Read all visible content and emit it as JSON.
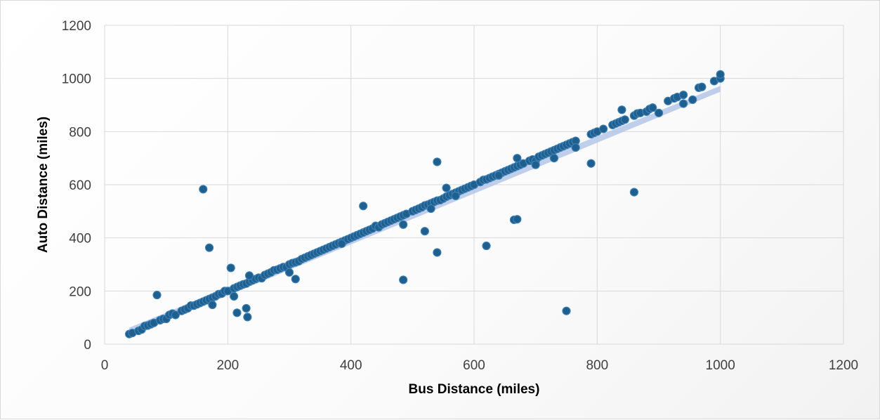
{
  "chart_data": {
    "type": "scatter",
    "title": "",
    "xlabel": "Bus Distance (miles)",
    "ylabel": "Auto Distance (miles)",
    "xlim": [
      0,
      1200
    ],
    "ylim": [
      0,
      1200
    ],
    "x_ticks": [
      0,
      200,
      400,
      600,
      800,
      1000,
      1200
    ],
    "y_ticks": [
      0,
      200,
      400,
      600,
      800,
      1000,
      1200
    ],
    "grid": true,
    "legend": "none",
    "colors": {
      "marker_fill": "#1f5f8e",
      "marker_edge": "#3d7fb5",
      "band": "#b4c7e7",
      "grid": "#d9d9d9"
    },
    "confidence_band": {
      "x": [
        40,
        1000
      ],
      "lower": [
        30,
        950
      ],
      "upper": [
        62,
        972
      ]
    },
    "series": [
      {
        "points": [
          [
            40,
            38
          ],
          [
            45,
            42
          ],
          [
            55,
            50
          ],
          [
            60,
            55
          ],
          [
            65,
            68
          ],
          [
            70,
            70
          ],
          [
            75,
            75
          ],
          [
            80,
            80
          ],
          [
            90,
            90
          ],
          [
            95,
            95
          ],
          [
            100,
            95
          ],
          [
            105,
            110
          ],
          [
            110,
            115
          ],
          [
            115,
            110
          ],
          [
            125,
            125
          ],
          [
            130,
            130
          ],
          [
            135,
            135
          ],
          [
            140,
            145
          ],
          [
            145,
            145
          ],
          [
            150,
            150
          ],
          [
            155,
            155
          ],
          [
            160,
            160
          ],
          [
            165,
            165
          ],
          [
            170,
            170
          ],
          [
            175,
            175
          ],
          [
            180,
            180
          ],
          [
            185,
            188
          ],
          [
            190,
            190
          ],
          [
            195,
            200
          ],
          [
            200,
            200
          ],
          [
            210,
            210
          ],
          [
            215,
            215
          ],
          [
            220,
            220
          ],
          [
            225,
            225
          ],
          [
            230,
            228
          ],
          [
            235,
            235
          ],
          [
            240,
            240
          ],
          [
            245,
            245
          ],
          [
            250,
            250
          ],
          [
            255,
            248
          ],
          [
            260,
            260
          ],
          [
            265,
            265
          ],
          [
            270,
            270
          ],
          [
            275,
            278
          ],
          [
            280,
            280
          ],
          [
            285,
            285
          ],
          [
            290,
            290
          ],
          [
            295,
            290
          ],
          [
            300,
            300
          ],
          [
            305,
            305
          ],
          [
            310,
            308
          ],
          [
            315,
            312
          ],
          [
            320,
            320
          ],
          [
            325,
            325
          ],
          [
            330,
            330
          ],
          [
            335,
            335
          ],
          [
            340,
            340
          ],
          [
            345,
            345
          ],
          [
            350,
            350
          ],
          [
            355,
            355
          ],
          [
            360,
            360
          ],
          [
            365,
            365
          ],
          [
            370,
            370
          ],
          [
            375,
            375
          ],
          [
            380,
            380
          ],
          [
            385,
            385
          ],
          [
            390,
            390
          ],
          [
            395,
            395
          ],
          [
            400,
            400
          ],
          [
            405,
            405
          ],
          [
            410,
            410
          ],
          [
            415,
            415
          ],
          [
            420,
            420
          ],
          [
            425,
            425
          ],
          [
            430,
            430
          ],
          [
            435,
            435
          ],
          [
            440,
            445
          ],
          [
            445,
            440
          ],
          [
            450,
            450
          ],
          [
            455,
            455
          ],
          [
            460,
            460
          ],
          [
            465,
            465
          ],
          [
            470,
            470
          ],
          [
            475,
            475
          ],
          [
            480,
            480
          ],
          [
            485,
            485
          ],
          [
            490,
            490
          ],
          [
            500,
            500
          ],
          [
            505,
            505
          ],
          [
            510,
            510
          ],
          [
            515,
            515
          ],
          [
            520,
            522
          ],
          [
            525,
            525
          ],
          [
            530,
            530
          ],
          [
            535,
            535
          ],
          [
            540,
            540
          ],
          [
            545,
            542
          ],
          [
            550,
            548
          ],
          [
            555,
            555
          ],
          [
            560,
            560
          ],
          [
            565,
            565
          ],
          [
            570,
            570
          ],
          [
            575,
            575
          ],
          [
            580,
            580
          ],
          [
            585,
            585
          ],
          [
            590,
            590
          ],
          [
            595,
            595
          ],
          [
            600,
            600
          ],
          [
            610,
            610
          ],
          [
            615,
            618
          ],
          [
            620,
            620
          ],
          [
            625,
            625
          ],
          [
            630,
            630
          ],
          [
            635,
            635
          ],
          [
            640,
            640
          ],
          [
            645,
            645
          ],
          [
            650,
            650
          ],
          [
            655,
            655
          ],
          [
            660,
            660
          ],
          [
            665,
            665
          ],
          [
            670,
            670
          ],
          [
            675,
            675
          ],
          [
            680,
            680
          ],
          [
            690,
            690
          ],
          [
            695,
            695
          ],
          [
            700,
            690
          ],
          [
            705,
            705
          ],
          [
            710,
            710
          ],
          [
            715,
            715
          ],
          [
            720,
            720
          ],
          [
            725,
            725
          ],
          [
            730,
            730
          ],
          [
            735,
            735
          ],
          [
            740,
            740
          ],
          [
            745,
            745
          ],
          [
            750,
            750
          ],
          [
            755,
            755
          ],
          [
            760,
            760
          ],
          [
            765,
            765
          ],
          [
            790,
            790
          ],
          [
            795,
            795
          ],
          [
            800,
            800
          ],
          [
            810,
            810
          ],
          [
            825,
            825
          ],
          [
            830,
            830
          ],
          [
            835,
            835
          ],
          [
            840,
            840
          ],
          [
            845,
            845
          ],
          [
            860,
            860
          ],
          [
            865,
            868
          ],
          [
            870,
            870
          ],
          [
            880,
            875
          ],
          [
            885,
            885
          ],
          [
            890,
            890
          ],
          [
            915,
            915
          ],
          [
            925,
            925
          ],
          [
            930,
            930
          ],
          [
            940,
            938
          ],
          [
            955,
            920
          ],
          [
            965,
            965
          ],
          [
            970,
            968
          ],
          [
            990,
            990
          ],
          [
            1000,
            1000
          ],
          [
            1000,
            1015
          ],
          [
            85,
            185
          ],
          [
            160,
            583
          ],
          [
            170,
            363
          ],
          [
            205,
            287
          ],
          [
            210,
            180
          ],
          [
            215,
            118
          ],
          [
            230,
            135
          ],
          [
            232,
            102
          ],
          [
            235,
            258
          ],
          [
            310,
            245
          ],
          [
            420,
            520
          ],
          [
            485,
            450
          ],
          [
            485,
            242
          ],
          [
            520,
            425
          ],
          [
            530,
            510
          ],
          [
            540,
            345
          ],
          [
            540,
            686
          ],
          [
            555,
            588
          ],
          [
            570,
            558
          ],
          [
            620,
            370
          ],
          [
            665,
            468
          ],
          [
            670,
            470
          ],
          [
            670,
            700
          ],
          [
            700,
            675
          ],
          [
            730,
            700
          ],
          [
            750,
            125
          ],
          [
            765,
            740
          ],
          [
            790,
            680
          ],
          [
            840,
            882
          ],
          [
            860,
            572
          ],
          [
            900,
            870
          ],
          [
            940,
            905
          ],
          [
            175,
            148
          ],
          [
            300,
            270
          ],
          [
            385,
            378
          ],
          [
            640,
            635
          ]
        ]
      }
    ]
  }
}
